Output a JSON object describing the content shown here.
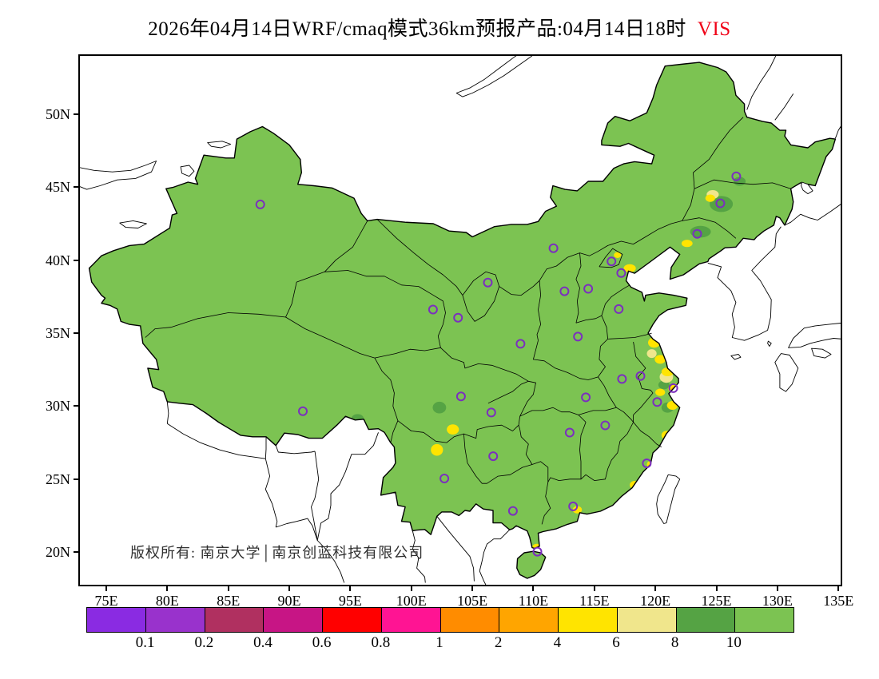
{
  "title": {
    "text": "2026年04月14日WRF/cmaq模式36km预报产品:04月14日18时",
    "highlight": "VIS"
  },
  "footer": {
    "copyright": "版权所有: 南京大学│南京创蓝科技有限公司"
  },
  "chart_data": {
    "type": "heatmap",
    "title": "2026年04月14日WRF/cmaq模式36km预报产品:04月14日18时 VIS",
    "variable": "VIS",
    "model": "WRF/cmaq",
    "resolution": "36km",
    "forecast_time": "04月14日18时",
    "x_axis": {
      "tick_labels": [
        "75E",
        "80E",
        "85E",
        "90E",
        "95E",
        "100E",
        "105E",
        "110E",
        "115E",
        "120E",
        "125E",
        "130E",
        "135E"
      ],
      "tick_values": [
        75,
        80,
        85,
        90,
        95,
        100,
        105,
        110,
        115,
        120,
        125,
        130,
        135
      ],
      "range": [
        72.8,
        135.2
      ]
    },
    "y_axis": {
      "tick_labels": [
        "50N",
        "45N",
        "40N",
        "35N",
        "30N",
        "25N",
        "20N"
      ],
      "tick_values": [
        50,
        45,
        40,
        35,
        30,
        25,
        20
      ],
      "range": [
        17.8,
        54.0
      ]
    },
    "colorbar": {
      "labels": [
        "0.1",
        "0.2",
        "0.4",
        "0.6",
        "0.8",
        "1",
        "2",
        "4",
        "6",
        "8",
        "10"
      ],
      "cells": [
        "#8A2BE2",
        "#9932CC",
        "#B03060",
        "#C71585",
        "#FF0000",
        "#FF1493",
        "#FF8C00",
        "#FFA500",
        "#FFE400",
        "#F0E68C",
        "#55A344",
        "#7CC352"
      ]
    },
    "background_band": ">10",
    "map_fill_color": "#7CC352",
    "marker_color": "#7B2FBE",
    "city_markers": [
      [
        87.62,
        43.82
      ],
      [
        126.63,
        45.75
      ],
      [
        125.32,
        43.9
      ],
      [
        123.43,
        41.8
      ],
      [
        116.4,
        39.92
      ],
      [
        117.2,
        39.12
      ],
      [
        114.5,
        38.04
      ],
      [
        112.55,
        37.87
      ],
      [
        111.65,
        40.82
      ],
      [
        106.27,
        38.47
      ],
      [
        103.83,
        36.06
      ],
      [
        101.78,
        36.62
      ],
      [
        108.95,
        34.27
      ],
      [
        113.65,
        34.76
      ],
      [
        117.0,
        36.65
      ],
      [
        118.78,
        32.06
      ],
      [
        117.27,
        31.86
      ],
      [
        121.47,
        31.23
      ],
      [
        120.15,
        30.28
      ],
      [
        114.3,
        30.6
      ],
      [
        112.98,
        28.19
      ],
      [
        115.89,
        28.68
      ],
      [
        119.3,
        26.08
      ],
      [
        113.26,
        23.13
      ],
      [
        108.33,
        22.82
      ],
      [
        110.33,
        20.03
      ],
      [
        106.71,
        26.57
      ],
      [
        102.71,
        25.04
      ],
      [
        104.07,
        30.67
      ],
      [
        106.55,
        29.56
      ],
      [
        91.11,
        29.65
      ]
    ],
    "patches": [
      {
        "lon": 125.4,
        "lat": 43.85,
        "rx": 0.95,
        "ry": 0.55,
        "band": "8-10"
      },
      {
        "lon": 126.9,
        "lat": 45.4,
        "rx": 0.5,
        "ry": 0.3,
        "band": "8-10"
      },
      {
        "lon": 123.7,
        "lat": 41.95,
        "rx": 0.85,
        "ry": 0.4,
        "band": "8-10"
      },
      {
        "lon": 102.3,
        "lat": 29.9,
        "rx": 0.55,
        "ry": 0.4,
        "band": "8-10"
      },
      {
        "lon": 120.7,
        "lat": 31.45,
        "rx": 0.45,
        "ry": 0.3,
        "band": "8-10"
      },
      {
        "lon": 121.0,
        "lat": 29.9,
        "rx": 0.5,
        "ry": 0.35,
        "band": "8-10"
      },
      {
        "lon": 95.6,
        "lat": 29.15,
        "rx": 0.5,
        "ry": 0.3,
        "band": "8-10"
      },
      {
        "lon": 124.7,
        "lat": 44.5,
        "rx": 0.5,
        "ry": 0.3,
        "band": "6-8"
      },
      {
        "lon": 120.9,
        "lat": 32.0,
        "rx": 0.55,
        "ry": 0.4,
        "band": "6-8"
      },
      {
        "lon": 119.7,
        "lat": 33.6,
        "rx": 0.4,
        "ry": 0.3,
        "band": "6-8"
      },
      {
        "lon": 124.5,
        "lat": 44.25,
        "rx": 0.4,
        "ry": 0.25,
        "band": "4-6"
      },
      {
        "lon": 122.6,
        "lat": 41.15,
        "rx": 0.45,
        "ry": 0.25,
        "band": "4-6"
      },
      {
        "lon": 117.9,
        "lat": 39.45,
        "rx": 0.5,
        "ry": 0.28,
        "band": "4-6"
      },
      {
        "lon": 116.9,
        "lat": 40.35,
        "rx": 0.3,
        "ry": 0.2,
        "band": "4-6"
      },
      {
        "lon": 119.9,
        "lat": 34.35,
        "rx": 0.5,
        "ry": 0.35,
        "band": "4-6"
      },
      {
        "lon": 120.4,
        "lat": 33.2,
        "rx": 0.45,
        "ry": 0.3,
        "band": "4-6"
      },
      {
        "lon": 121.0,
        "lat": 32.35,
        "rx": 0.5,
        "ry": 0.3,
        "band": "4-6"
      },
      {
        "lon": 121.6,
        "lat": 31.2,
        "rx": 0.55,
        "ry": 0.35,
        "band": "4-6"
      },
      {
        "lon": 120.4,
        "lat": 30.95,
        "rx": 0.4,
        "ry": 0.25,
        "band": "4-6"
      },
      {
        "lon": 121.4,
        "lat": 30.05,
        "rx": 0.45,
        "ry": 0.3,
        "band": "4-6"
      },
      {
        "lon": 120.9,
        "lat": 28.0,
        "rx": 0.4,
        "ry": 0.3,
        "band": "4-6"
      },
      {
        "lon": 119.7,
        "lat": 26.0,
        "rx": 0.4,
        "ry": 0.28,
        "band": "4-6"
      },
      {
        "lon": 118.3,
        "lat": 24.6,
        "rx": 0.4,
        "ry": 0.28,
        "band": "4-6"
      },
      {
        "lon": 113.6,
        "lat": 22.9,
        "rx": 0.38,
        "ry": 0.25,
        "band": "4-6"
      },
      {
        "lon": 110.3,
        "lat": 20.35,
        "rx": 0.38,
        "ry": 0.22,
        "band": "4-6"
      },
      {
        "lon": 103.4,
        "lat": 28.4,
        "rx": 0.5,
        "ry": 0.35,
        "band": "4-6"
      },
      {
        "lon": 102.1,
        "lat": 27.0,
        "rx": 0.5,
        "ry": 0.4,
        "band": "4-6"
      },
      {
        "lon": 95.1,
        "lat": 28.85,
        "rx": 0.45,
        "ry": 0.3,
        "band": "4-6"
      },
      {
        "lon": 121.5,
        "lat": 31.15,
        "rx": 0.2,
        "ry": 0.14,
        "band": "2-4"
      }
    ]
  }
}
